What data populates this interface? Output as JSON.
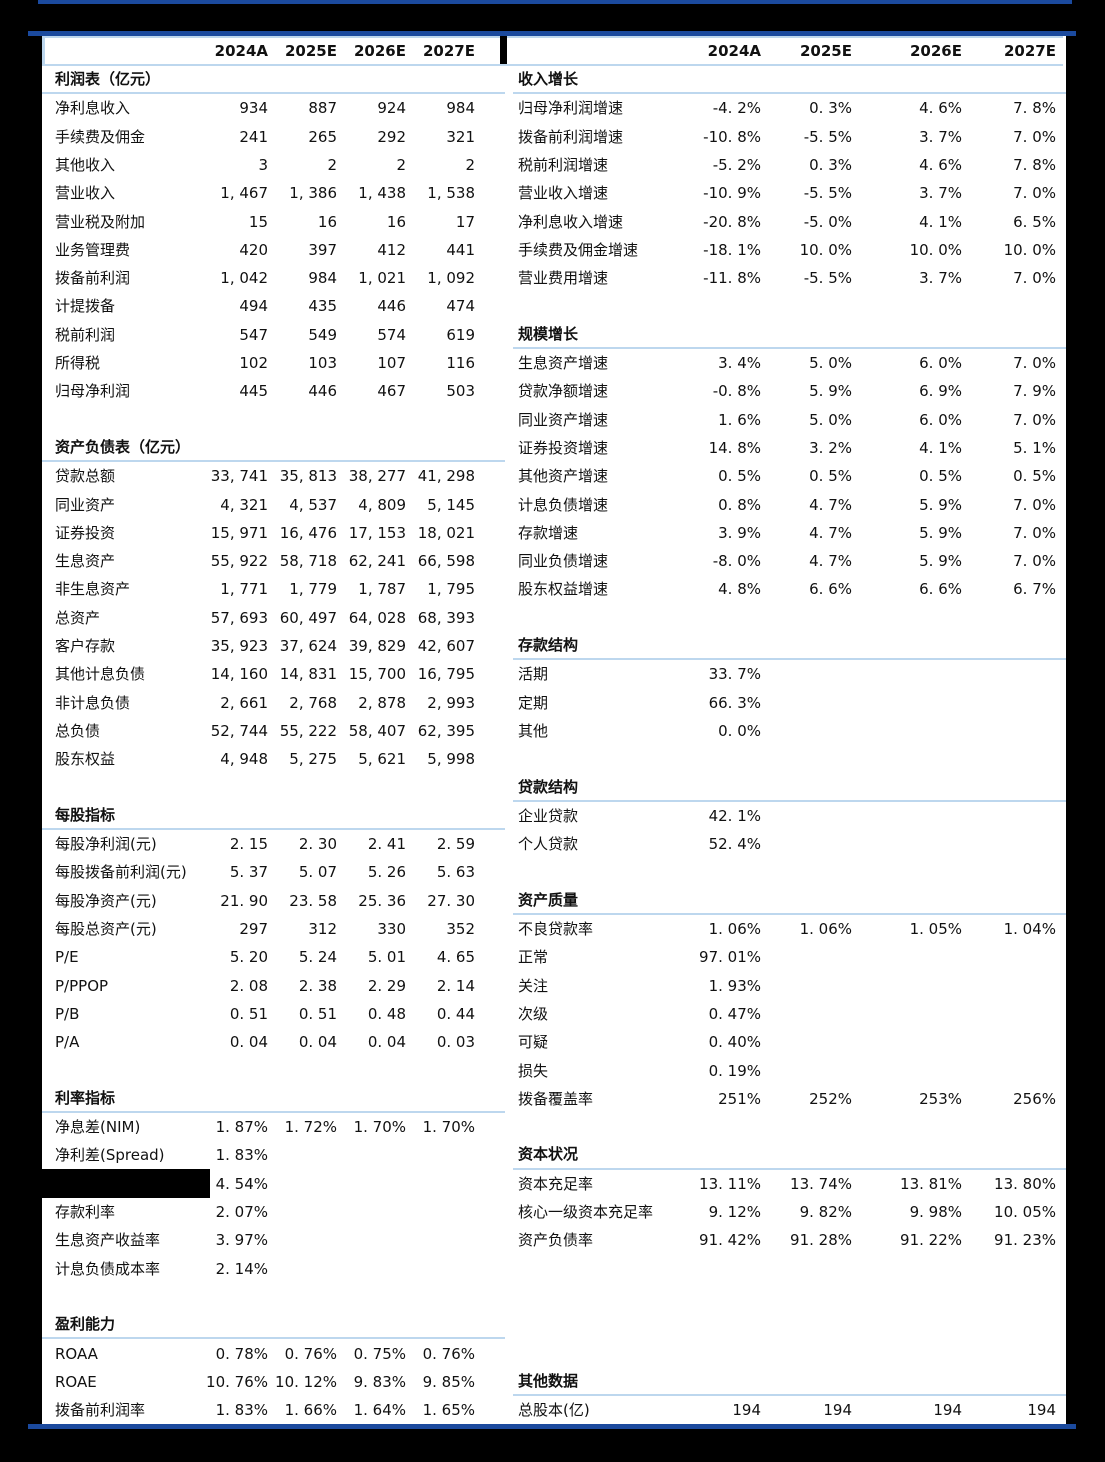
{
  "colors": {
    "background": "#000000",
    "navy_rule": "#1b4a9e",
    "divider_blue": "#bdd7ee",
    "panel": "#ffffff",
    "text": "#111111"
  },
  "columns": [
    "2024A",
    "2025E",
    "2026E",
    "2027E"
  ],
  "left_table": {
    "sections": [
      {
        "title": "利润表（亿元）",
        "gap_rows": 0,
        "rows": [
          {
            "label": "净利息收入",
            "values": [
              "934",
              "887",
              "924",
              "984"
            ]
          },
          {
            "label": "手续费及佣金",
            "values": [
              "241",
              "265",
              "292",
              "321"
            ]
          },
          {
            "label": "其他收入",
            "values": [
              "3",
              "2",
              "2",
              "2"
            ]
          },
          {
            "label": "营业收入",
            "values": [
              "1, 467",
              "1, 386",
              "1, 438",
              "1, 538"
            ]
          },
          {
            "label": "营业税及附加",
            "values": [
              "15",
              "16",
              "16",
              "17"
            ]
          },
          {
            "label": "业务管理费",
            "values": [
              "420",
              "397",
              "412",
              "441"
            ]
          },
          {
            "label": "拨备前利润",
            "values": [
              "1, 042",
              "984",
              "1, 021",
              "1, 092"
            ]
          },
          {
            "label": "计提拨备",
            "values": [
              "494",
              "435",
              "446",
              "474"
            ]
          },
          {
            "label": "税前利润",
            "values": [
              "547",
              "549",
              "574",
              "619"
            ]
          },
          {
            "label": "所得税",
            "values": [
              "102",
              "103",
              "107",
              "116"
            ]
          },
          {
            "label": "归母净利润",
            "values": [
              "445",
              "446",
              "467",
              "503"
            ]
          }
        ]
      },
      {
        "title": "资产负债表（亿元）",
        "gap_rows": 1,
        "rows": [
          {
            "label": "贷款总额",
            "values": [
              "33, 741",
              "35, 813",
              "38, 277",
              "41, 298"
            ]
          },
          {
            "label": "同业资产",
            "values": [
              "4, 321",
              "4, 537",
              "4, 809",
              "5, 145"
            ]
          },
          {
            "label": "证券投资",
            "values": [
              "15, 971",
              "16, 476",
              "17, 153",
              "18, 021"
            ]
          },
          {
            "label": "生息资产",
            "values": [
              "55, 922",
              "58, 718",
              "62, 241",
              "66, 598"
            ]
          },
          {
            "label": "非生息资产",
            "values": [
              "1, 771",
              "1, 779",
              "1, 787",
              "1, 795"
            ]
          },
          {
            "label": "总资产",
            "values": [
              "57, 693",
              "60, 497",
              "64, 028",
              "68, 393"
            ]
          },
          {
            "label": "客户存款",
            "values": [
              "35, 923",
              "37, 624",
              "39, 829",
              "42, 607"
            ]
          },
          {
            "label": "其他计息负债",
            "values": [
              "14, 160",
              "14, 831",
              "15, 700",
              "16, 795"
            ]
          },
          {
            "label": "非计息负债",
            "values": [
              "2, 661",
              "2, 768",
              "2, 878",
              "2, 993"
            ]
          },
          {
            "label": "总负债",
            "values": [
              "52, 744",
              "55, 222",
              "58, 407",
              "62, 395"
            ]
          },
          {
            "label": "股东权益",
            "values": [
              "4, 948",
              "5, 275",
              "5, 621",
              "5, 998"
            ]
          }
        ]
      },
      {
        "title": "每股指标",
        "gap_rows": 1,
        "rows": [
          {
            "label": "每股净利润(元)",
            "values": [
              "2. 15",
              "2. 30",
              "2. 41",
              "2. 59"
            ]
          },
          {
            "label": "每股拨备前利润(元)",
            "values": [
              "5. 37",
              "5. 07",
              "5. 26",
              "5. 63"
            ]
          },
          {
            "label": "每股净资产(元)",
            "values": [
              "21. 90",
              "23. 58",
              "25. 36",
              "27. 30"
            ]
          },
          {
            "label": "每股总资产(元)",
            "values": [
              "297",
              "312",
              "330",
              "352"
            ]
          },
          {
            "label": "P/E",
            "values": [
              "5. 20",
              "5. 24",
              "5. 01",
              "4. 65"
            ]
          },
          {
            "label": "P/PPOP",
            "values": [
              "2. 08",
              "2. 38",
              "2. 29",
              "2. 14"
            ]
          },
          {
            "label": "P/B",
            "values": [
              "0. 51",
              "0. 51",
              "0. 48",
              "0. 44"
            ]
          },
          {
            "label": "P/A",
            "values": [
              "0. 04",
              "0. 04",
              "0. 04",
              "0. 03"
            ]
          }
        ]
      },
      {
        "title": "利率指标",
        "gap_rows": 1,
        "rows": [
          {
            "label": "净息差(NIM)",
            "values": [
              "1. 87%",
              "1. 72%",
              "1. 70%",
              "1. 70%"
            ]
          },
          {
            "label": "净利差(Spread)",
            "values": [
              "1. 83%"
            ]
          },
          {
            "label": "",
            "redacted": true,
            "values": [
              "4. 54%"
            ]
          },
          {
            "label": "存款利率",
            "values": [
              "2. 07%"
            ]
          },
          {
            "label": "生息资产收益率",
            "values": [
              "3. 97%"
            ]
          },
          {
            "label": "计息负债成本率",
            "values": [
              "2. 14%"
            ]
          }
        ]
      },
      {
        "title": "盈利能力",
        "gap_rows": 1,
        "rows": [
          {
            "label": "ROAA",
            "values": [
              "0. 78%",
              "0. 76%",
              "0. 75%",
              "0. 76%"
            ]
          },
          {
            "label": "ROAE",
            "values": [
              "10. 76%",
              "10. 12%",
              "9. 83%",
              "9. 85%"
            ]
          },
          {
            "label": "拨备前利润率",
            "values": [
              "1. 83%",
              "1. 66%",
              "1. 64%",
              "1. 65%"
            ]
          }
        ]
      }
    ]
  },
  "right_table": {
    "sections": [
      {
        "title": "收入增长",
        "gap_rows": 0,
        "rows": [
          {
            "label": "归母净利润增速",
            "values": [
              "-4. 2%",
              "0. 3%",
              "4. 6%",
              "7. 8%"
            ]
          },
          {
            "label": "拨备前利润增速",
            "values": [
              "-10. 8%",
              "-5. 5%",
              "3. 7%",
              "7. 0%"
            ]
          },
          {
            "label": "税前利润增速",
            "values": [
              "-5. 2%",
              "0. 3%",
              "4. 6%",
              "7. 8%"
            ]
          },
          {
            "label": "营业收入增速",
            "values": [
              "-10. 9%",
              "-5. 5%",
              "3. 7%",
              "7. 0%"
            ]
          },
          {
            "label": "净利息收入增速",
            "values": [
              "-20. 8%",
              "-5. 0%",
              "4. 1%",
              "6. 5%"
            ]
          },
          {
            "label": "手续费及佣金增速",
            "values": [
              "-18. 1%",
              "10. 0%",
              "10. 0%",
              "10. 0%"
            ]
          },
          {
            "label": "营业费用增速",
            "values": [
              "-11. 8%",
              "-5. 5%",
              "3. 7%",
              "7. 0%"
            ]
          }
        ]
      },
      {
        "title": "规模增长",
        "gap_rows": 1,
        "rows": [
          {
            "label": "生息资产增速",
            "values": [
              "3. 4%",
              "5. 0%",
              "6. 0%",
              "7. 0%"
            ]
          },
          {
            "label": "贷款净额增速",
            "values": [
              "-0. 8%",
              "5. 9%",
              "6. 9%",
              "7. 9%"
            ]
          },
          {
            "label": "同业资产增速",
            "values": [
              "1. 6%",
              "5. 0%",
              "6. 0%",
              "7. 0%"
            ]
          },
          {
            "label": "证券投资增速",
            "values": [
              "14. 8%",
              "3. 2%",
              "4. 1%",
              "5. 1%"
            ]
          },
          {
            "label": "其他资产增速",
            "values": [
              "0. 5%",
              "0. 5%",
              "0. 5%",
              "0. 5%"
            ]
          },
          {
            "label": "计息负债增速",
            "values": [
              "0. 8%",
              "4. 7%",
              "5. 9%",
              "7. 0%"
            ]
          },
          {
            "label": "存款增速",
            "values": [
              "3. 9%",
              "4. 7%",
              "5. 9%",
              "7. 0%"
            ]
          },
          {
            "label": "同业负债增速",
            "values": [
              "-8. 0%",
              "4. 7%",
              "5. 9%",
              "7. 0%"
            ]
          },
          {
            "label": "股东权益增速",
            "values": [
              "4. 8%",
              "6. 6%",
              "6. 6%",
              "6. 7%"
            ]
          }
        ]
      },
      {
        "title": "存款结构",
        "gap_rows": 1,
        "rows": [
          {
            "label": "活期",
            "values": [
              "33. 7%"
            ]
          },
          {
            "label": "定期",
            "values": [
              "66. 3%"
            ]
          },
          {
            "label": "其他",
            "values": [
              "0. 0%"
            ]
          }
        ]
      },
      {
        "title": "贷款结构",
        "gap_rows": 1,
        "rows": [
          {
            "label": "企业贷款",
            "values": [
              "42. 1%"
            ]
          },
          {
            "label": "个人贷款",
            "values": [
              "52. 4%"
            ]
          }
        ]
      },
      {
        "title": "资产质量",
        "gap_rows": 1,
        "rows": [
          {
            "label": "不良贷款率",
            "values": [
              "1. 06%",
              "1. 06%",
              "1. 05%",
              "1. 04%"
            ]
          },
          {
            "label": "正常",
            "values": [
              "97. 01%"
            ]
          },
          {
            "label": "关注",
            "values": [
              "1. 93%"
            ]
          },
          {
            "label": "次级",
            "values": [
              "0. 47%"
            ]
          },
          {
            "label": "可疑",
            "values": [
              "0. 40%"
            ]
          },
          {
            "label": "损失",
            "values": [
              "0. 19%"
            ]
          },
          {
            "label": "拨备覆盖率",
            "values": [
              "251%",
              "252%",
              "253%",
              "256%"
            ]
          }
        ]
      },
      {
        "title": "资本状况",
        "gap_rows": 1,
        "rows": [
          {
            "label": "资本充足率",
            "values": [
              "13. 11%",
              "13. 74%",
              "13. 81%",
              "13. 80%"
            ]
          },
          {
            "label": "核心一级资本充足率",
            "values": [
              "9. 12%",
              "9. 82%",
              "9. 98%",
              "10. 05%"
            ]
          },
          {
            "label": "资产负债率",
            "values": [
              "91. 42%",
              "91. 28%",
              "91. 22%",
              "91. 23%"
            ]
          }
        ]
      },
      {
        "title": "其他数据",
        "gap_rows": 4,
        "rows": [
          {
            "label": "总股本(亿)",
            "values": [
              "194",
              "194",
              "194",
              "194"
            ]
          }
        ]
      }
    ]
  }
}
